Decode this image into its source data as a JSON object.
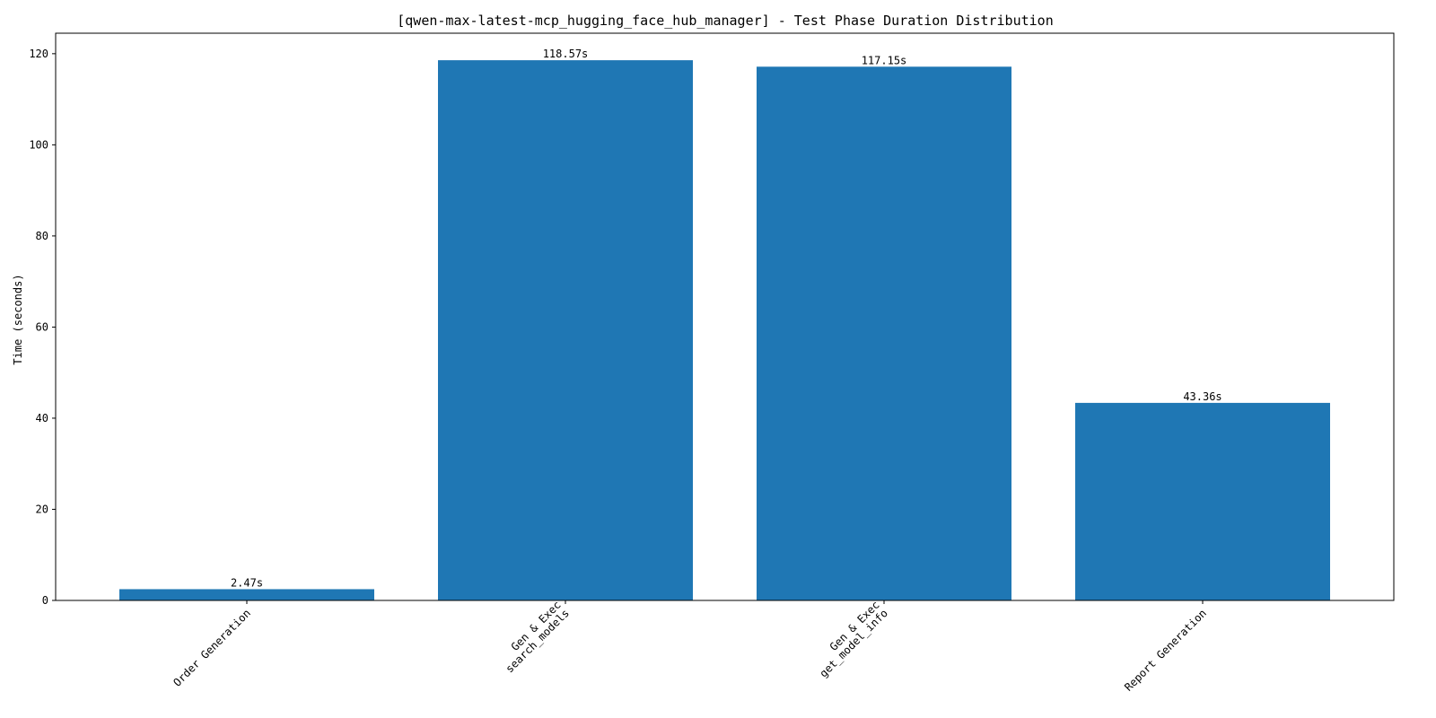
{
  "chart_data": {
    "type": "bar",
    "title": "[qwen-max-latest-mcp_hugging_face_hub_manager] - Test Phase Duration Distribution",
    "xlabel": "",
    "ylabel": "Time (seconds)",
    "categories": [
      [
        "Order Generation"
      ],
      [
        "Gen & Exec",
        "search_models"
      ],
      [
        "Gen & Exec",
        "get_model_info"
      ],
      [
        "Report Generation"
      ]
    ],
    "values": [
      2.47,
      118.57,
      117.15,
      43.36
    ],
    "value_labels": [
      "2.47s",
      "118.57s",
      "117.15s",
      "43.36s"
    ],
    "ylim": [
      0,
      124.5
    ],
    "yticks": [
      0,
      20,
      40,
      60,
      80,
      100,
      120
    ],
    "ytick_labels": [
      "0",
      "20",
      "40",
      "60",
      "80",
      "100",
      "120"
    ],
    "bar_color": "#1f77b4",
    "grid": false,
    "legend": "none"
  }
}
